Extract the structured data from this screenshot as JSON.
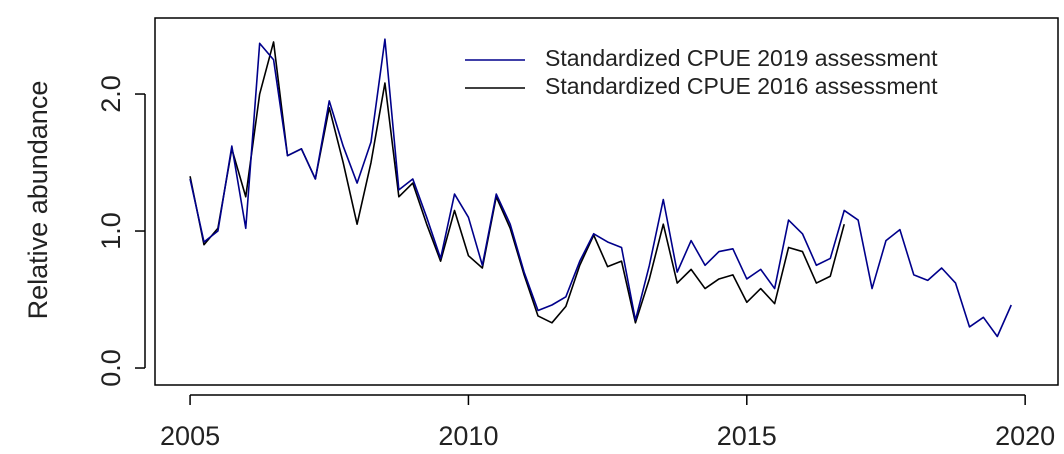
{
  "chart_data": {
    "type": "line",
    "y_label": "Relative abundance",
    "x": [
      2005,
      2005.25,
      2005.5,
      2005.75,
      2006,
      2006.25,
      2006.5,
      2006.75,
      2007,
      2007.25,
      2007.5,
      2007.75,
      2008,
      2008.25,
      2008.5,
      2008.75,
      2009,
      2009.25,
      2009.5,
      2009.75,
      2010,
      2010.25,
      2010.5,
      2010.75,
      2011,
      2011.25,
      2011.5,
      2011.75,
      2012,
      2012.25,
      2012.5,
      2012.75,
      2013,
      2013.25,
      2013.5,
      2013.75,
      2014,
      2014.25,
      2014.5,
      2014.75,
      2015,
      2015.25,
      2015.5,
      2015.75,
      2016,
      2016.25,
      2016.5,
      2016.75,
      2017,
      2017.25,
      2017.5,
      2017.75,
      2018,
      2018.25,
      2018.5,
      2018.75,
      2019,
      2019.25,
      2019.5,
      2019.75
    ],
    "series": [
      {
        "name": "Standardized CPUE 2019 assessment",
        "color": "#00008b",
        "values": [
          1.38,
          0.92,
          1.0,
          1.62,
          1.02,
          2.37,
          2.25,
          1.55,
          1.6,
          1.38,
          1.95,
          1.62,
          1.35,
          1.65,
          2.4,
          1.3,
          1.38,
          1.1,
          0.8,
          1.27,
          1.1,
          0.75,
          1.27,
          1.05,
          0.7,
          0.42,
          0.46,
          0.52,
          0.78,
          0.98,
          0.92,
          0.88,
          0.35,
          0.75,
          1.23,
          0.7,
          0.93,
          0.75,
          0.85,
          0.87,
          0.65,
          0.72,
          0.58,
          1.08,
          0.98,
          0.75,
          0.8,
          1.15,
          1.08,
          0.58,
          0.93,
          1.01,
          0.68,
          0.64,
          0.73,
          0.62,
          0.3,
          0.37,
          0.23,
          0.46
        ]
      },
      {
        "name": "Standardized CPUE 2016 assessment",
        "color": "#000000",
        "values": [
          1.4,
          0.9,
          1.02,
          1.6,
          1.25,
          2.0,
          2.38,
          1.55,
          1.6,
          1.38,
          1.9,
          1.5,
          1.05,
          1.5,
          2.08,
          1.25,
          1.35,
          1.05,
          0.78,
          1.15,
          0.82,
          0.73,
          1.25,
          1.02,
          0.68,
          0.38,
          0.33,
          0.45,
          0.75,
          0.97,
          0.74,
          0.78,
          0.33,
          0.65,
          1.05,
          0.62,
          0.72,
          0.58,
          0.65,
          0.68,
          0.48,
          0.58,
          0.47,
          0.88,
          0.85,
          0.62,
          0.67,
          1.05,
          null,
          null,
          null,
          null,
          null,
          null,
          null,
          null,
          null,
          null,
          null,
          null
        ]
      }
    ],
    "xlim": [
      2004.37,
      2020.59
    ],
    "ylim": [
      -0.124,
      2.555
    ],
    "xticks": [
      2005,
      2010,
      2015,
      2020
    ],
    "yticks": [
      {
        "value": 0,
        "label": "0.0"
      },
      {
        "value": 1,
        "label": "1.0"
      },
      {
        "value": 2,
        "label": "2.0"
      }
    ],
    "legend": "top-right"
  }
}
